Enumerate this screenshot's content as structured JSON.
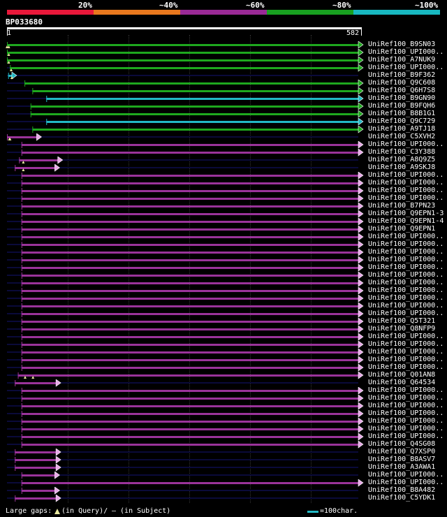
{
  "coverage_scale": {
    "ticks": [
      "20%",
      "~40%",
      "~60%",
      "~80%",
      "~100%"
    ],
    "bands": [
      "#e8183a",
      "#e8781e",
      "#9a2a96",
      "#18a020",
      "#18b8c0"
    ]
  },
  "query": {
    "name": "BP033680",
    "start_label": "1",
    "end_label": "582",
    "length": 582
  },
  "colors": {
    "green": "#1ea81e",
    "cyan": "#22b8c4",
    "purple": "#9a339a",
    "dark": "#0a0a3a",
    "arrow": "#e8a8e8",
    "gap": "#e8e8a0"
  },
  "legend": {
    "text": "Large gaps:",
    "query_part": "(in Query)/",
    "subject_part": "– (in Subject)",
    "scale_text": "=100char."
  },
  "hits": [
    {
      "label": "UniRef100_B9SN03",
      "color": "green",
      "start": 1,
      "end": 582,
      "gaps": [
        1,
        4
      ]
    },
    {
      "label": "UniRef100_UPI000..",
      "color": "green",
      "start": 1,
      "end": 582,
      "gaps": [
        4
      ]
    },
    {
      "label": "UniRef100_A7NUK9",
      "color": "green",
      "start": 1,
      "end": 582,
      "gaps": [
        4
      ]
    },
    {
      "label": "UniRef100_UPI000..",
      "color": "green",
      "start": 6,
      "end": 582,
      "gaps": [
        8
      ]
    },
    {
      "label": "UniRef100_B9F362",
      "color": "cyan",
      "start": 3,
      "end": 9,
      "gaps": [
        9
      ]
    },
    {
      "label": "UniRef100_Q9C608",
      "color": "green",
      "start": 30,
      "end": 582,
      "gaps": []
    },
    {
      "label": "UniRef100_Q6H7S8",
      "color": "green",
      "start": 43,
      "end": 582,
      "gaps": []
    },
    {
      "label": "UniRef100_B9GN90",
      "color": "cyan",
      "start": 66,
      "end": 582,
      "gaps": []
    },
    {
      "label": "UniRef100_B9FQH6",
      "color": "green",
      "start": 40,
      "end": 582,
      "gaps": []
    },
    {
      "label": "UniRef100_B8B1G1",
      "color": "green",
      "start": 40,
      "end": 582,
      "gaps": []
    },
    {
      "label": "UniRef100_Q9C729",
      "color": "cyan",
      "start": 66,
      "end": 582,
      "gaps": []
    },
    {
      "label": "UniRef100_A9TJ18",
      "color": "green",
      "start": 43,
      "end": 582,
      "gaps": []
    },
    {
      "label": "UniRef100_C5XVH2",
      "color": "purple",
      "start": 1,
      "end": 50,
      "gaps": [
        5,
        6
      ]
    },
    {
      "label": "UniRef100_UPI000..",
      "color": "purple",
      "start": 25,
      "end": 582,
      "gaps": []
    },
    {
      "label": "UniRef100_C3Y388",
      "color": "purple",
      "start": 25,
      "end": 582,
      "gaps": []
    },
    {
      "label": "UniRef100_A8Q9Z5",
      "color": "purple",
      "start": 21,
      "end": 85,
      "gaps": [
        28
      ]
    },
    {
      "label": "UniRef100_A9SKJ8",
      "color": "purple",
      "start": 14,
      "end": 80,
      "gaps": [
        28
      ]
    },
    {
      "label": "UniRef100_UPI000..",
      "color": "purple",
      "start": 25,
      "end": 582,
      "gaps": []
    },
    {
      "label": "UniRef100_UPI000..",
      "color": "purple",
      "start": 25,
      "end": 582,
      "gaps": []
    },
    {
      "label": "UniRef100_UPI000..",
      "color": "purple",
      "start": 25,
      "end": 582,
      "gaps": []
    },
    {
      "label": "UniRef100_UPI000..",
      "color": "purple",
      "start": 25,
      "end": 582,
      "gaps": []
    },
    {
      "label": "UniRef100_B7PN23",
      "color": "purple",
      "start": 25,
      "end": 582,
      "gaps": []
    },
    {
      "label": "UniRef100_Q9EPN1-3",
      "color": "purple",
      "start": 25,
      "end": 582,
      "gaps": []
    },
    {
      "label": "UniRef100_Q9EPN1-4",
      "color": "purple",
      "start": 25,
      "end": 582,
      "gaps": []
    },
    {
      "label": "UniRef100_Q9EPN1",
      "color": "purple",
      "start": 25,
      "end": 582,
      "gaps": []
    },
    {
      "label": "UniRef100_UPI000..",
      "color": "purple",
      "start": 25,
      "end": 582,
      "gaps": []
    },
    {
      "label": "UniRef100_UPI000..",
      "color": "purple",
      "start": 25,
      "end": 582,
      "gaps": []
    },
    {
      "label": "UniRef100_UPI000..",
      "color": "purple",
      "start": 25,
      "end": 582,
      "gaps": []
    },
    {
      "label": "UniRef100_UPI000..",
      "color": "purple",
      "start": 25,
      "end": 582,
      "gaps": []
    },
    {
      "label": "UniRef100_UPI000..",
      "color": "purple",
      "start": 25,
      "end": 582,
      "gaps": []
    },
    {
      "label": "UniRef100_UPI000..",
      "color": "purple",
      "start": 25,
      "end": 582,
      "gaps": []
    },
    {
      "label": "UniRef100_UPI000..",
      "color": "purple",
      "start": 25,
      "end": 582,
      "gaps": []
    },
    {
      "label": "UniRef100_UPI000..",
      "color": "purple",
      "start": 25,
      "end": 582,
      "gaps": []
    },
    {
      "label": "UniRef100_UPI000..",
      "color": "purple",
      "start": 25,
      "end": 582,
      "gaps": []
    },
    {
      "label": "UniRef100_UPI000..",
      "color": "purple",
      "start": 25,
      "end": 582,
      "gaps": []
    },
    {
      "label": "UniRef100_UPI000..",
      "color": "purple",
      "start": 25,
      "end": 582,
      "gaps": []
    },
    {
      "label": "UniRef100_Q5T321",
      "color": "purple",
      "start": 25,
      "end": 582,
      "gaps": []
    },
    {
      "label": "UniRef100_Q8NFP9",
      "color": "purple",
      "start": 25,
      "end": 582,
      "gaps": []
    },
    {
      "label": "UniRef100_UPI000..",
      "color": "purple",
      "start": 25,
      "end": 582,
      "gaps": []
    },
    {
      "label": "UniRef100_UPI000..",
      "color": "purple",
      "start": 25,
      "end": 582,
      "gaps": []
    },
    {
      "label": "UniRef100_UPI000..",
      "color": "purple",
      "start": 25,
      "end": 582,
      "gaps": []
    },
    {
      "label": "UniRef100_UPI000..",
      "color": "purple",
      "start": 25,
      "end": 582,
      "gaps": []
    },
    {
      "label": "UniRef100_UPI000..",
      "color": "purple",
      "start": 25,
      "end": 582,
      "gaps": []
    },
    {
      "label": "UniRef100_Q01AN8",
      "color": "purple",
      "start": 19,
      "end": 582,
      "gaps": [
        31,
        44
      ]
    },
    {
      "label": "UniRef100_Q64534",
      "color": "purple",
      "start": 14,
      "end": 82,
      "gaps": []
    },
    {
      "label": "UniRef100_UPI000..",
      "color": "purple",
      "start": 25,
      "end": 582,
      "gaps": []
    },
    {
      "label": "UniRef100_UPI000..",
      "color": "purple",
      "start": 25,
      "end": 582,
      "gaps": []
    },
    {
      "label": "UniRef100_UPI000..",
      "color": "purple",
      "start": 25,
      "end": 582,
      "gaps": []
    },
    {
      "label": "UniRef100_UPI000..",
      "color": "purple",
      "start": 25,
      "end": 582,
      "gaps": []
    },
    {
      "label": "UniRef100_UPI000..",
      "color": "purple",
      "start": 25,
      "end": 582,
      "gaps": []
    },
    {
      "label": "UniRef100_UPI000..",
      "color": "purple",
      "start": 25,
      "end": 582,
      "gaps": []
    },
    {
      "label": "UniRef100_UPI000..",
      "color": "purple",
      "start": 25,
      "end": 582,
      "gaps": []
    },
    {
      "label": "UniRef100_Q4SG08",
      "color": "purple",
      "start": 25,
      "end": 582,
      "gaps": []
    },
    {
      "label": "UniRef100_Q7XSP0",
      "color": "purple",
      "start": 14,
      "end": 82,
      "gaps": []
    },
    {
      "label": "UniRef100_B8ASV7",
      "color": "purple",
      "start": 14,
      "end": 82,
      "gaps": []
    },
    {
      "label": "UniRef100_A3AWA1",
      "color": "purple",
      "start": 14,
      "end": 82,
      "gaps": []
    },
    {
      "label": "UniRef100_UPI000..",
      "color": "purple",
      "start": 25,
      "end": 80,
      "gaps": []
    },
    {
      "label": "UniRef100_UPI000..",
      "color": "purple",
      "start": 25,
      "end": 582,
      "gaps": []
    },
    {
      "label": "UniRef100_B8A482",
      "color": "purple",
      "start": 25,
      "end": 80,
      "gaps": []
    },
    {
      "label": "UniRef100_C5YDK1",
      "color": "purple",
      "start": 14,
      "end": 82,
      "gaps": []
    }
  ]
}
